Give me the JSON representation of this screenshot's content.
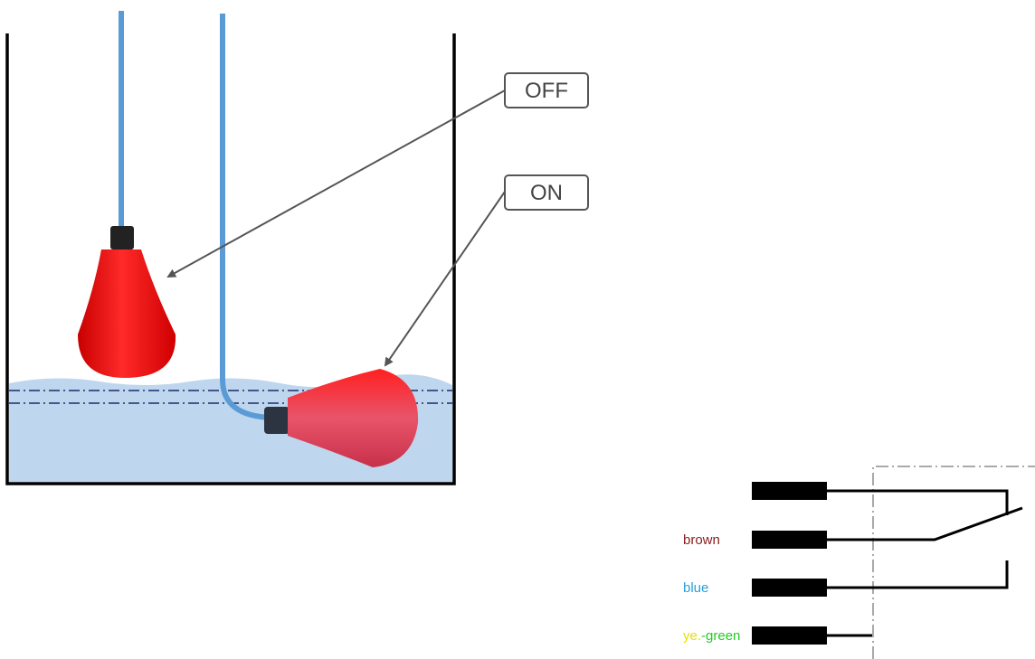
{
  "callouts": {
    "off": "OFF",
    "on": "ON"
  },
  "wires": [
    "brown",
    "blue"
  ],
  "ground": [
    "ye.",
    "-green"
  ]
}
